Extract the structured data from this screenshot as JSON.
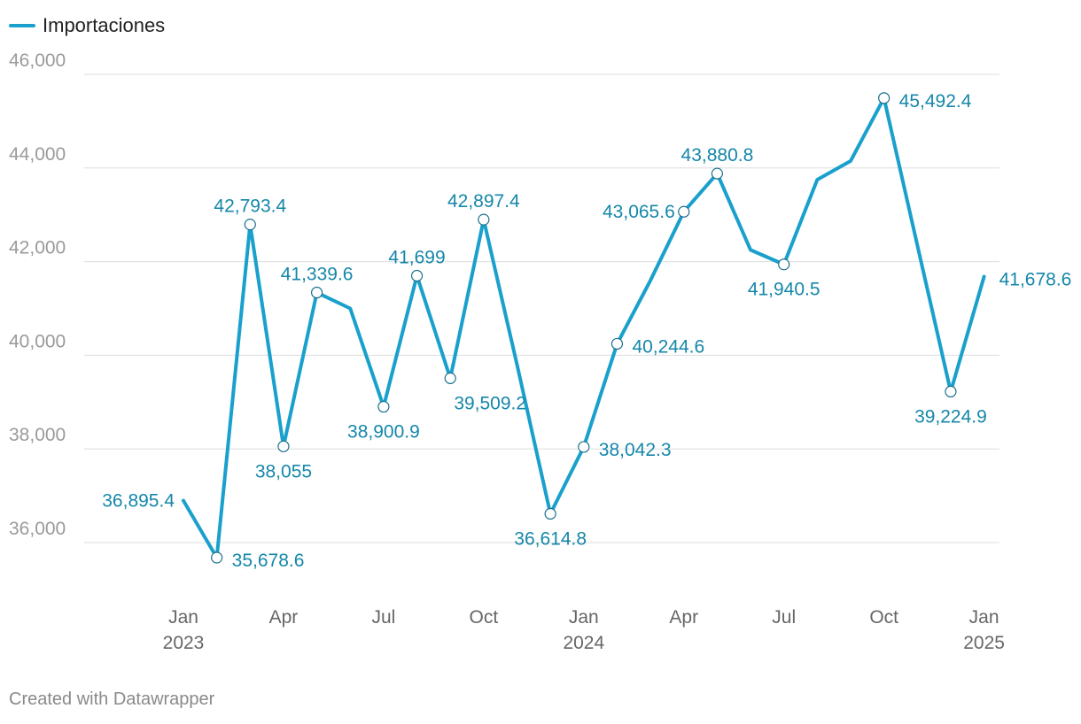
{
  "footer": "Created with Datawrapper",
  "colors": {
    "line": "#1aa0cc",
    "label": "#1587aa",
    "grid": "#dddddd",
    "axis_text": "#9a9a9a",
    "x_text": "#666666"
  },
  "chart_data": {
    "type": "line",
    "title": "",
    "xlabel": "",
    "ylabel": "",
    "ylim": [
      35000,
      46500
    ],
    "yticks": [
      36000,
      38000,
      40000,
      42000,
      44000,
      46000
    ],
    "ytick_labels": [
      "36,000",
      "38,000",
      "40,000",
      "42,000",
      "44,000",
      "46,000"
    ],
    "x_ticks": [
      {
        "date": "2023-01",
        "month": "Jan",
        "year": "2023"
      },
      {
        "date": "2023-04",
        "month": "Apr",
        "year": ""
      },
      {
        "date": "2023-07",
        "month": "Jul",
        "year": ""
      },
      {
        "date": "2023-10",
        "month": "Oct",
        "year": ""
      },
      {
        "date": "2024-01",
        "month": "Jan",
        "year": "2024"
      },
      {
        "date": "2024-04",
        "month": "Apr",
        "year": ""
      },
      {
        "date": "2024-07",
        "month": "Jul",
        "year": ""
      },
      {
        "date": "2024-10",
        "month": "Oct",
        "year": ""
      },
      {
        "date": "2025-01",
        "month": "Jan",
        "year": "2025"
      }
    ],
    "grid": true,
    "legend_position": "top-left",
    "series": [
      {
        "name": "Importaciones",
        "points": [
          {
            "date": "2023-01",
            "value": 36895.4,
            "label": "36,895.4",
            "marker": false,
            "pos": "left"
          },
          {
            "date": "2023-02",
            "value": 35678.6,
            "label": "35,678.6",
            "marker": true,
            "pos": "right"
          },
          {
            "date": "2023-03",
            "value": 42793.4,
            "label": "42,793.4",
            "marker": true,
            "pos": "above"
          },
          {
            "date": "2023-04",
            "value": 38055,
            "label": "38,055",
            "marker": true,
            "pos": "below"
          },
          {
            "date": "2023-05",
            "value": 41339.6,
            "label": "41,339.6",
            "marker": true,
            "pos": "above"
          },
          {
            "date": "2023-06",
            "value": 41000,
            "label": "",
            "marker": false,
            "pos": ""
          },
          {
            "date": "2023-07",
            "value": 38900.9,
            "label": "38,900.9",
            "marker": true,
            "pos": "below"
          },
          {
            "date": "2023-08",
            "value": 41699,
            "label": "41,699",
            "marker": true,
            "pos": "above"
          },
          {
            "date": "2023-09",
            "value": 39509.2,
            "label": "39,509.2",
            "marker": true,
            "pos": "below-right"
          },
          {
            "date": "2023-10",
            "value": 42897.4,
            "label": "42,897.4",
            "marker": true,
            "pos": "above"
          },
          {
            "date": "2023-11",
            "value": 39800,
            "label": "",
            "marker": false,
            "pos": ""
          },
          {
            "date": "2023-12",
            "value": 36614.8,
            "label": "36,614.8",
            "marker": true,
            "pos": "below"
          },
          {
            "date": "2024-01",
            "value": 38042.3,
            "label": "38,042.3",
            "marker": true,
            "pos": "right"
          },
          {
            "date": "2024-02",
            "value": 40244.6,
            "label": "40,244.6",
            "marker": true,
            "pos": "right"
          },
          {
            "date": "2024-03",
            "value": 41600,
            "label": "",
            "marker": false,
            "pos": ""
          },
          {
            "date": "2024-04",
            "value": 43065.6,
            "label": "43,065.6",
            "marker": true,
            "pos": "left"
          },
          {
            "date": "2024-05",
            "value": 43880.8,
            "label": "43,880.8",
            "marker": true,
            "pos": "above"
          },
          {
            "date": "2024-06",
            "value": 42250,
            "label": "",
            "marker": false,
            "pos": ""
          },
          {
            "date": "2024-07",
            "value": 41940.5,
            "label": "41,940.5",
            "marker": true,
            "pos": "below"
          },
          {
            "date": "2024-08",
            "value": 43750,
            "label": "",
            "marker": false,
            "pos": ""
          },
          {
            "date": "2024-09",
            "value": 44150,
            "label": "",
            "marker": false,
            "pos": ""
          },
          {
            "date": "2024-10",
            "value": 45492.4,
            "label": "45,492.4",
            "marker": true,
            "pos": "right"
          },
          {
            "date": "2024-11",
            "value": 42350,
            "label": "",
            "marker": false,
            "pos": ""
          },
          {
            "date": "2024-12",
            "value": 39224.9,
            "label": "39,224.9",
            "marker": true,
            "pos": "below"
          },
          {
            "date": "2025-01",
            "value": 41678.6,
            "label": "41,678.6",
            "marker": false,
            "pos": "right"
          }
        ]
      }
    ]
  }
}
